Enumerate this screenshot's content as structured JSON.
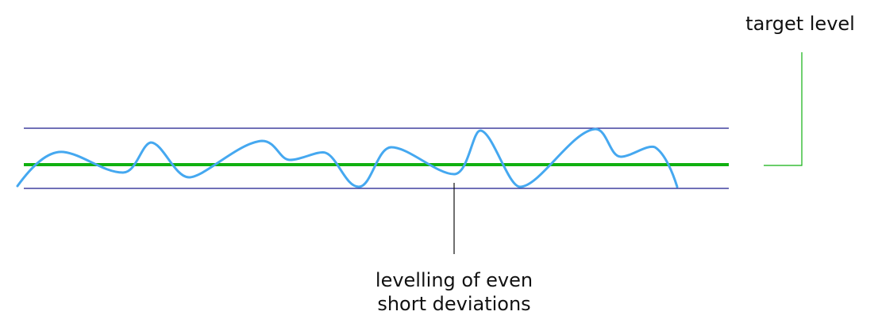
{
  "labels": {
    "target_level": "target level",
    "deviation_line1": "levelling of even",
    "deviation_line2": "short deviations"
  },
  "colors": {
    "band_lines": "#1a1a8c",
    "target_line": "#10b010",
    "signal": "#45a8f0",
    "callout": "#111111",
    "target_callout": "#10b010"
  }
}
